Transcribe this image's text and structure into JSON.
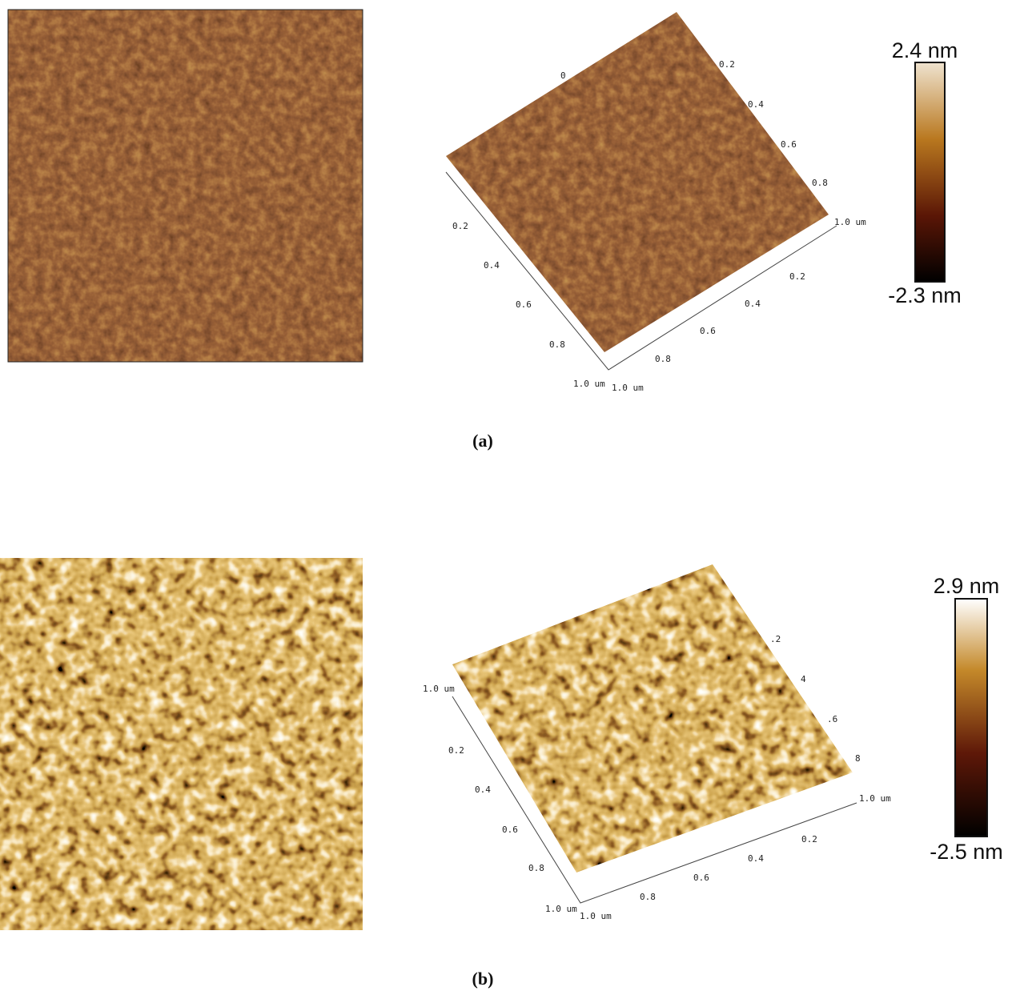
{
  "figure": {
    "panels": [
      {
        "label": "(a)",
        "colorbar": {
          "max": "2.4 nm",
          "min": "-2.3 nm"
        },
        "axis_3d": {
          "back": [
            "0",
            "0.2",
            "0.4",
            "0.6",
            "0.8",
            "1.0 um"
          ],
          "left": [
            "0.2",
            "0.4",
            "0.6",
            "0.8",
            "1.0 um"
          ],
          "front": [
            "1.0 um",
            "0.8",
            "0.6",
            "0.4",
            "0.2"
          ]
        }
      },
      {
        "label": "(b)",
        "colorbar": {
          "max": "2.9 nm",
          "min": "-2.5 nm"
        },
        "axis_3d": {
          "back": [
            ".2",
            "4",
            ".6",
            "8",
            "1.0 um"
          ],
          "left": [
            "1.0 um",
            "0.2",
            "0.4",
            "0.6",
            "0.8",
            "1.0 um"
          ],
          "front": [
            "1.0 um",
            "0.8",
            "0.6",
            "0.4",
            "0.2"
          ]
        }
      }
    ]
  }
}
